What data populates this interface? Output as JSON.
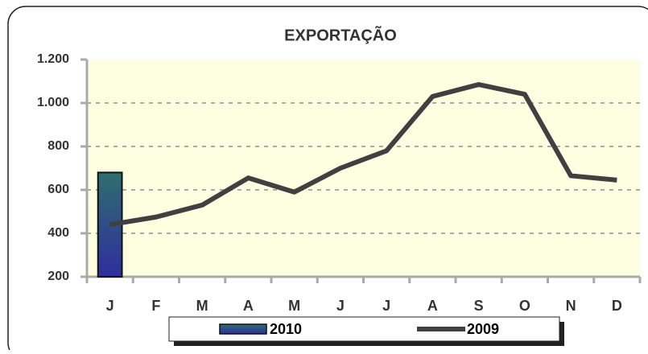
{
  "chart_data": {
    "type": "bar_line",
    "title": "EXPORTAÇÃO",
    "categories": [
      "J",
      "F",
      "M",
      "A",
      "M",
      "J",
      "J",
      "A",
      "S",
      "O",
      "N",
      "D"
    ],
    "series": [
      {
        "name": "2010",
        "type": "bar",
        "color": "#2e3a9a",
        "values": [
          680,
          null,
          null,
          null,
          null,
          null,
          null,
          null,
          null,
          null,
          null,
          null
        ]
      },
      {
        "name": "2009",
        "type": "line",
        "color": "#404040",
        "values": [
          440,
          475,
          530,
          655,
          590,
          700,
          780,
          1030,
          1085,
          1040,
          665,
          645
        ]
      }
    ],
    "ylim": [
      200,
      1200
    ],
    "yticks": [
      200,
      400,
      600,
      800,
      {
        "value": 1000,
        "label": "1.000"
      },
      {
        "value": 1200,
        "label": "1.200"
      }
    ],
    "grid": true
  }
}
